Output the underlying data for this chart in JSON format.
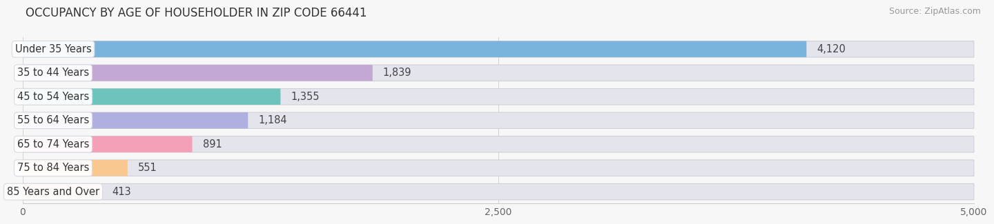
{
  "title": "OCCUPANCY BY AGE OF HOUSEHOLDER IN ZIP CODE 66441",
  "source": "Source: ZipAtlas.com",
  "categories": [
    "Under 35 Years",
    "35 to 44 Years",
    "45 to 54 Years",
    "55 to 64 Years",
    "65 to 74 Years",
    "75 to 84 Years",
    "85 Years and Over"
  ],
  "values": [
    4120,
    1839,
    1355,
    1184,
    891,
    551,
    413
  ],
  "bar_colors": [
    "#7ab4dc",
    "#c4a8d4",
    "#6cc4bc",
    "#b0b0e0",
    "#f4a0b8",
    "#f8c890",
    "#f0b0a4"
  ],
  "xlim": [
    0,
    5000
  ],
  "xticks": [
    0,
    2500,
    5000
  ],
  "background_color": "#f7f7f7",
  "bar_bg_color": "#e4e4ec",
  "title_fontsize": 12,
  "label_fontsize": 10.5,
  "value_fontsize": 10.5
}
